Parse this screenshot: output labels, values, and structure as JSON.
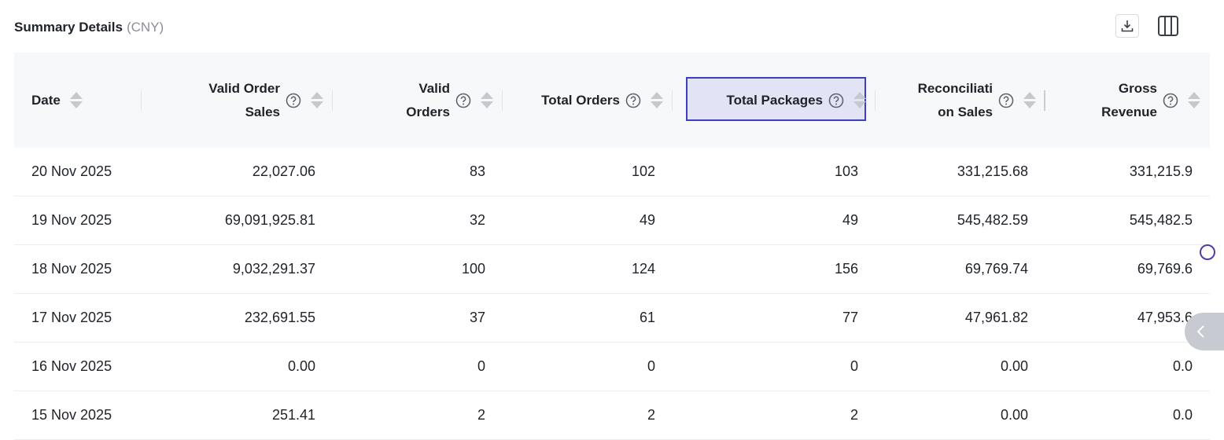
{
  "header": {
    "title": "Summary Details",
    "currency": "(CNY)",
    "download_icon": "download-icon",
    "columns_icon": "columns-icon"
  },
  "table": {
    "columns": [
      {
        "id": "date",
        "line1": "Date",
        "line2": "",
        "help": false
      },
      {
        "id": "valid-order-sales",
        "line1": "Valid Order",
        "line2": "Sales",
        "help": true
      },
      {
        "id": "valid-orders",
        "line1": "Valid",
        "line2": "Orders",
        "help": true
      },
      {
        "id": "total-orders",
        "line1": "Total Orders",
        "line2": "",
        "help": true
      },
      {
        "id": "total-packages",
        "line1": "Total Packages",
        "line2": "",
        "help": true,
        "highlighted": true
      },
      {
        "id": "reconciliation-sales",
        "line1": "Reconciliati",
        "line2": "on Sales",
        "help": true
      },
      {
        "id": "gross-revenue",
        "line1": "Gross",
        "line2": "Revenue",
        "help": true
      }
    ],
    "rows": [
      [
        "20 Nov 2025",
        "22,027.06",
        "83",
        "102",
        "103",
        "331,215.68",
        "331,215.9"
      ],
      [
        "19 Nov 2025",
        "69,091,925.81",
        "32",
        "49",
        "49",
        "545,482.59",
        "545,482.5"
      ],
      [
        "18 Nov 2025",
        "9,032,291.37",
        "100",
        "124",
        "156",
        "69,769.74",
        "69,769.6"
      ],
      [
        "17 Nov 2025",
        "232,691.55",
        "37",
        "61",
        "77",
        "47,961.82",
        "47,953.6"
      ],
      [
        "16 Nov 2025",
        "0.00",
        "0",
        "0",
        "0",
        "0.00",
        "0.0"
      ],
      [
        "15 Nov 2025",
        "251.41",
        "2",
        "2",
        "2",
        "0.00",
        "0.0"
      ]
    ]
  },
  "colors": {
    "highlight_border": "#3d3fc0",
    "highlight_fill": "#e3e3f6",
    "header_bg": "#f7f8fa",
    "side_tab": "#c7cbd1"
  }
}
